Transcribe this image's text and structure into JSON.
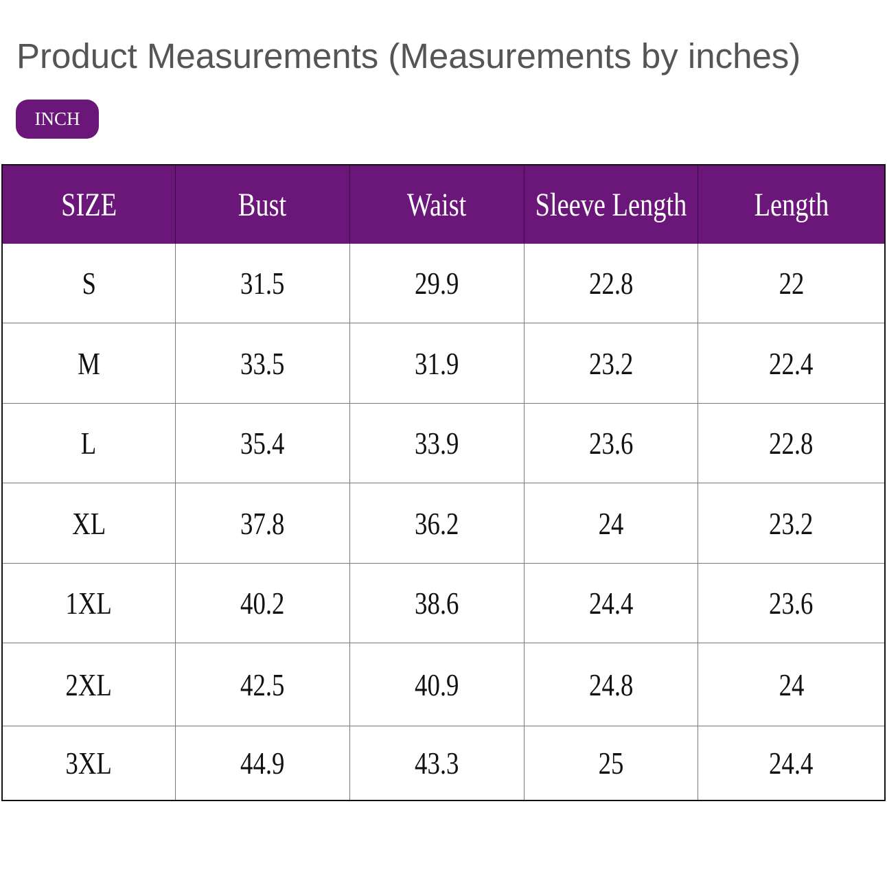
{
  "title": "Product Measurements (Measurements by inches)",
  "unit_badge": "INCH",
  "colors": {
    "accent": "#6b1679",
    "title": "#555555"
  },
  "table": {
    "headers": [
      "SIZE",
      "Bust",
      "Waist",
      "Sleeve Length",
      "Length"
    ],
    "rows": [
      [
        "S",
        "31.5",
        "29.9",
        "22.8",
        "22"
      ],
      [
        "M",
        "33.5",
        "31.9",
        "23.2",
        "22.4"
      ],
      [
        "L",
        "35.4",
        "33.9",
        "23.6",
        "22.8"
      ],
      [
        "XL",
        "37.8",
        "36.2",
        "24",
        "23.2"
      ],
      [
        "1XL",
        "40.2",
        "38.6",
        "24.4",
        "23.6"
      ],
      [
        "2XL",
        "42.5",
        "40.9",
        "24.8",
        "24"
      ],
      [
        "3XL",
        "44.9",
        "43.3",
        "25",
        "24.4"
      ]
    ]
  }
}
